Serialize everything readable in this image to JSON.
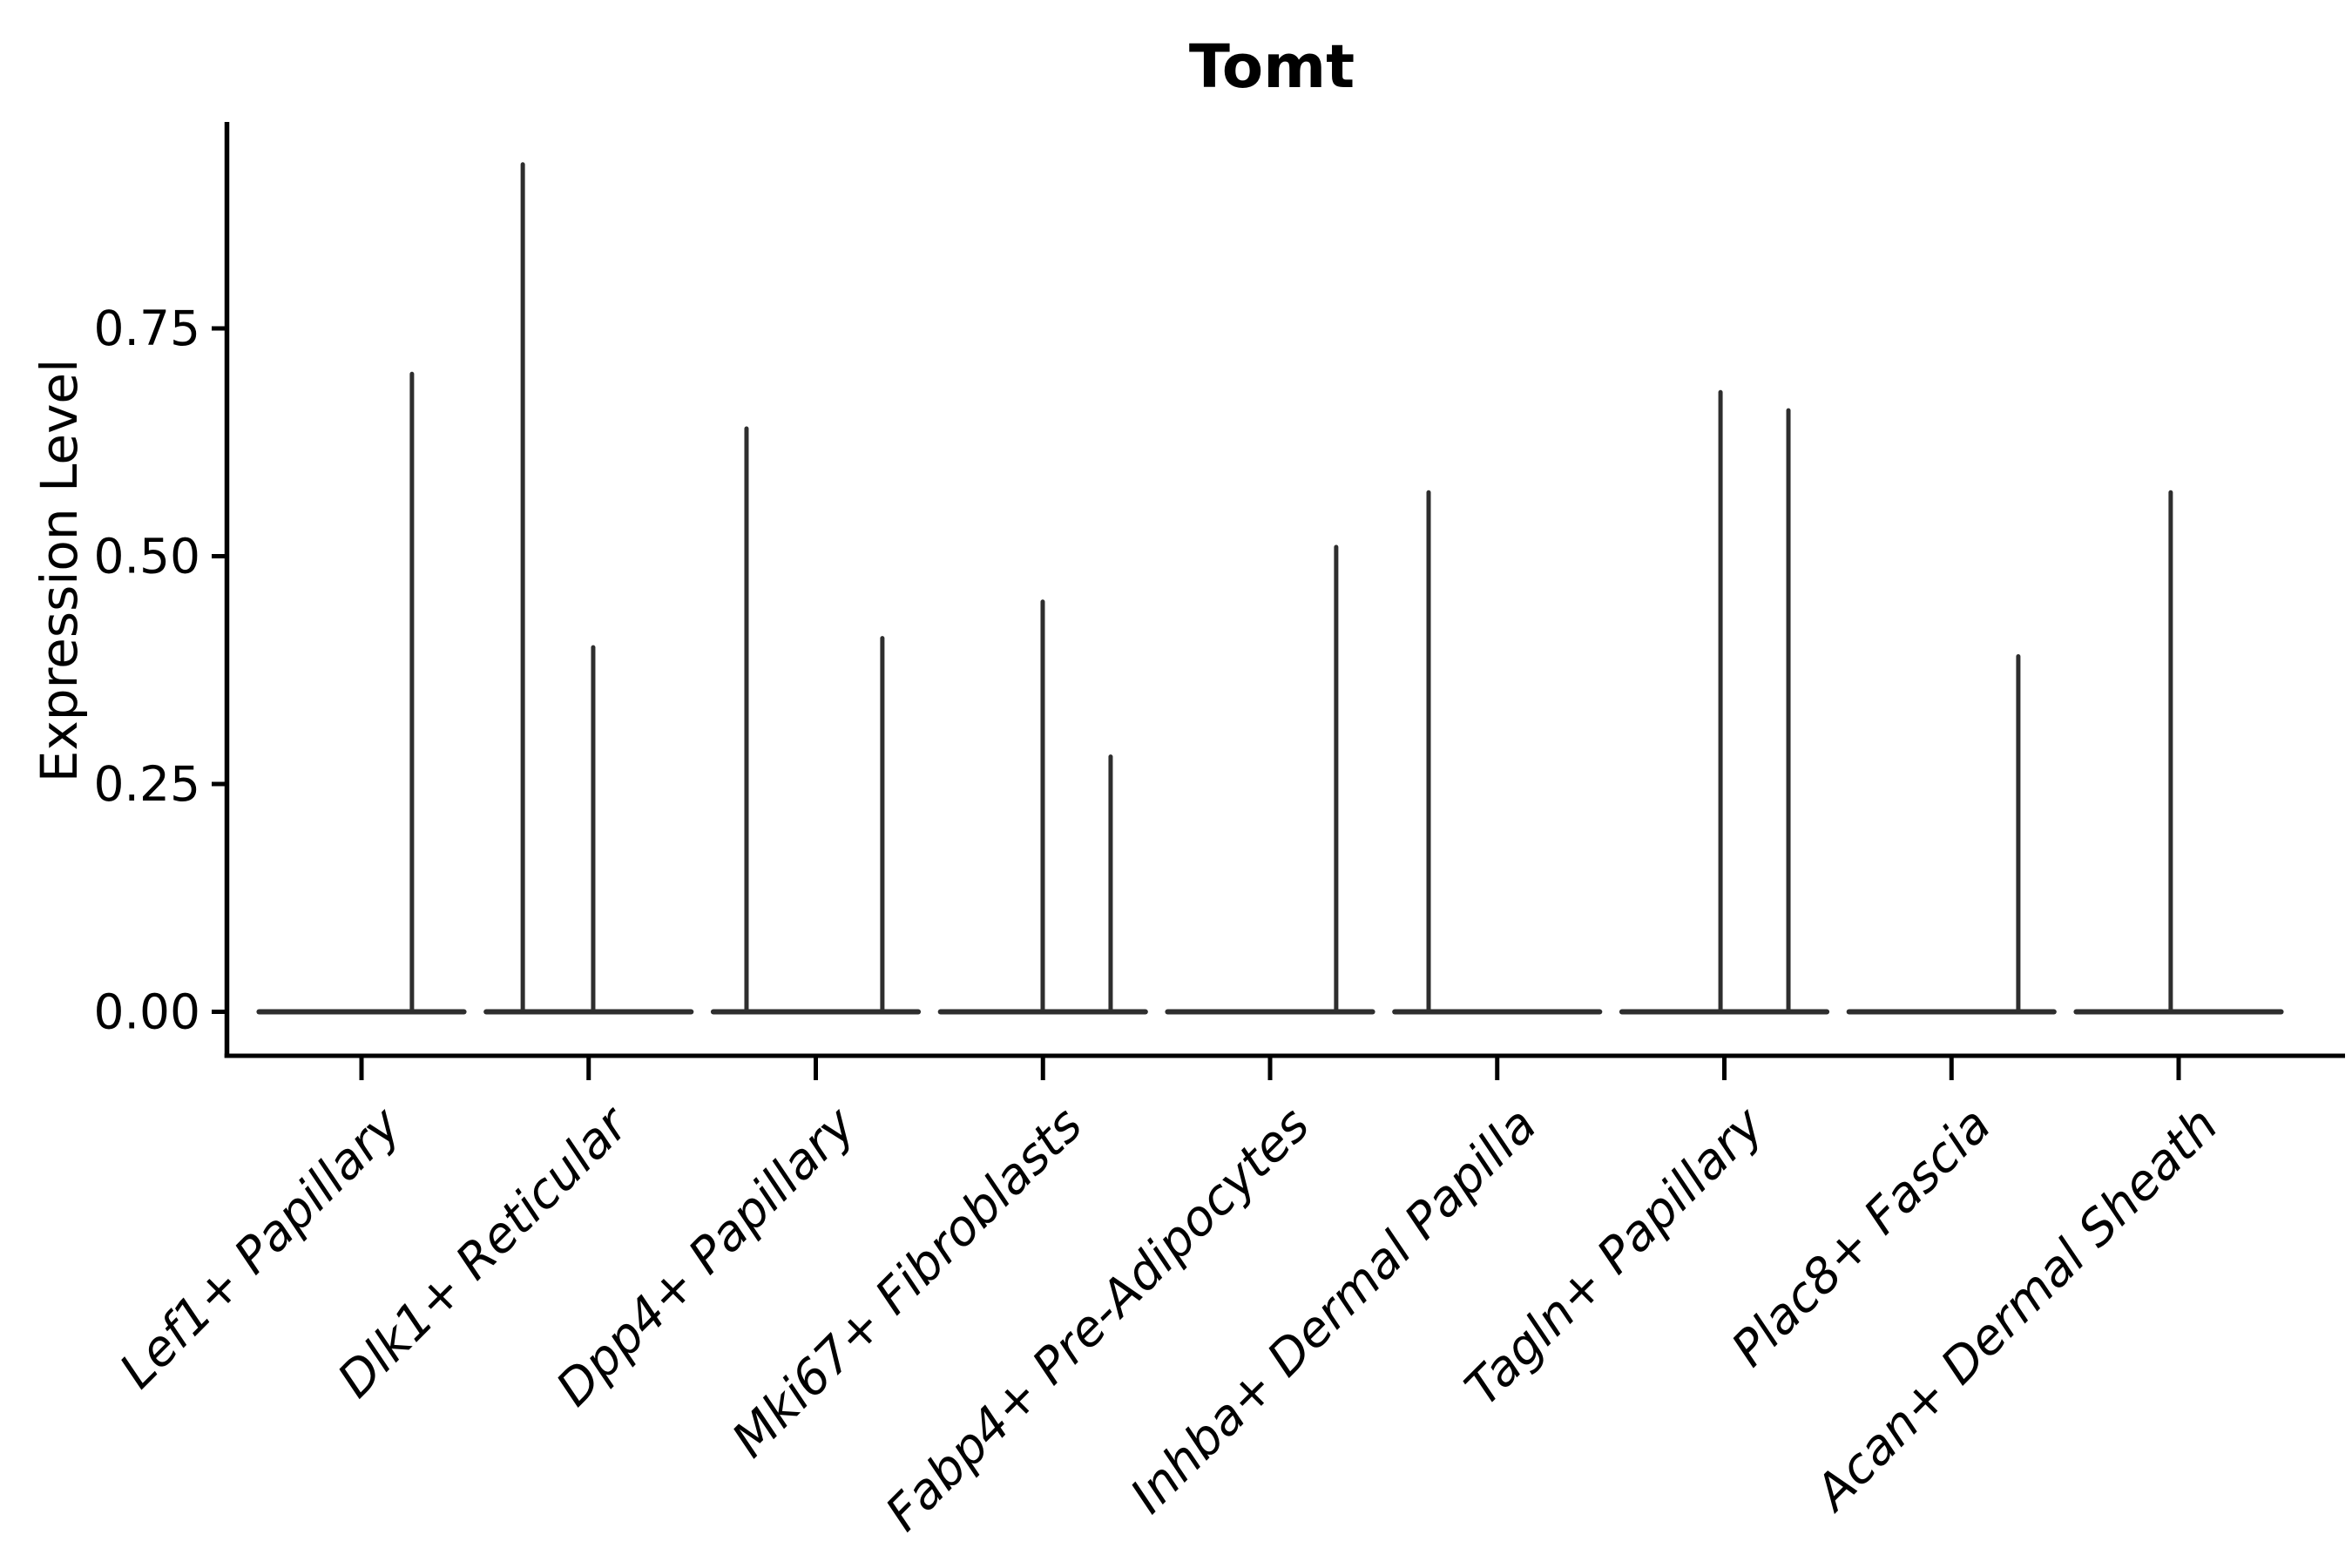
{
  "figure": {
    "title": "Tomt",
    "background": "#ffffff"
  },
  "chart_data": {
    "type": "violin",
    "title": "Tomt",
    "xlabel": "",
    "ylabel": "Expression Level",
    "ylim": [
      0,
      0.98
    ],
    "grid": false,
    "legend": "none",
    "colors": {
      "violin_line": "#2e2e2e",
      "axis": "#000000",
      "text": "#000000"
    },
    "yticks": [
      {
        "value": 0.0,
        "label": "0.00"
      },
      {
        "value": 0.25,
        "label": "0.25"
      },
      {
        "value": 0.5,
        "label": "0.50"
      },
      {
        "value": 0.75,
        "label": "0.75"
      }
    ],
    "categories": [
      "Lef1+ Papillary",
      "Dlk1+ Reticular",
      "Dpp4+ Papillary",
      "Mki67+ Fibroblasts",
      "Fabp4+ Pre-Adipocytes",
      "Inhba+ Dermal Papilla",
      "Tagln+ Papillary",
      "Plac8+ Fascia",
      "Acan+ Dermal Sheath"
    ],
    "violin_half_width": 0.451,
    "violins": [
      {
        "label": "Lef1+ Papillary",
        "baseline_value": 0.0,
        "spikes": [
          {
            "offset": 0.222,
            "value": 0.7
          }
        ]
      },
      {
        "label": "Dlk1+ Reticular",
        "baseline_value": 0.0,
        "spikes": [
          {
            "offset": -0.29,
            "value": 0.93
          },
          {
            "offset": 0.02,
            "value": 0.4
          }
        ]
      },
      {
        "label": "Dpp4+ Papillary",
        "baseline_value": 0.0,
        "spikes": [
          {
            "offset": -0.305,
            "value": 0.64
          },
          {
            "offset": 0.293,
            "value": 0.41
          }
        ]
      },
      {
        "label": "Mki67+ Fibroblasts",
        "baseline_value": 0.0,
        "spikes": [
          {
            "offset": -0.001,
            "value": 0.45
          },
          {
            "offset": 0.298,
            "value": 0.28
          }
        ]
      },
      {
        "label": "Fabp4+ Pre-Adipocytes",
        "baseline_value": 0.0,
        "spikes": [
          {
            "offset": 0.291,
            "value": 0.51
          }
        ]
      },
      {
        "label": "Inhba+ Dermal Papilla",
        "baseline_value": 0.0,
        "spikes": [
          {
            "offset": -0.302,
            "value": 0.57
          }
        ]
      },
      {
        "label": "Tagln+ Papillary",
        "baseline_value": 0.0,
        "spikes": [
          {
            "offset": -0.017,
            "value": 0.68
          },
          {
            "offset": 0.282,
            "value": 0.66
          }
        ]
      },
      {
        "label": "Plac8+ Fascia",
        "baseline_value": 0.0,
        "spikes": [
          {
            "offset": 0.294,
            "value": 0.39
          }
        ]
      },
      {
        "label": "Acan+ Dermal Sheath",
        "baseline_value": 0.0,
        "spikes": [
          {
            "offset": -0.035,
            "value": 0.57
          }
        ]
      }
    ]
  }
}
